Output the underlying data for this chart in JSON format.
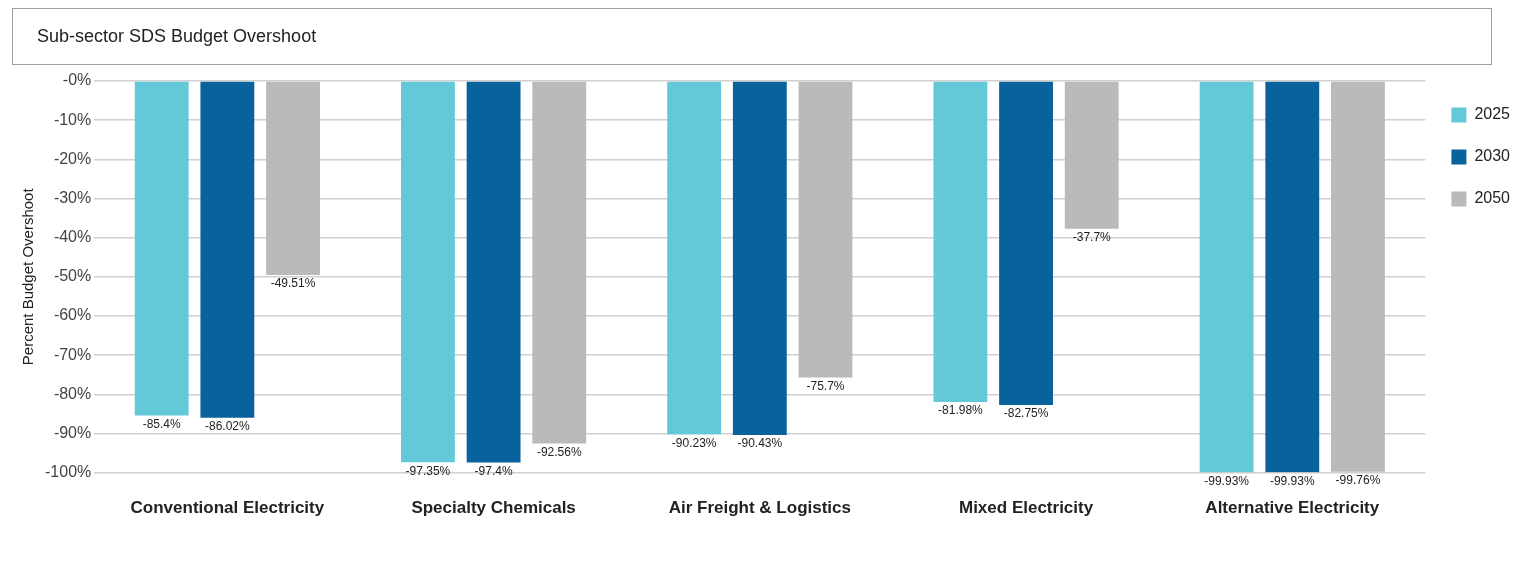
{
  "chart_data": {
    "type": "bar",
    "title": "Sub-sector SDS Budget Overshoot",
    "ylabel": "Percent Budget Overshoot",
    "categories": [
      "Conventional Electricity",
      "Specialty Chemicals",
      "Air Freight & Logistics",
      "Mixed Electricity",
      "Alternative Electricity"
    ],
    "series": [
      {
        "name": "2025",
        "color": "#63c8d8",
        "values": [
          -85.4,
          -97.35,
          -90.23,
          -81.98,
          -99.93
        ],
        "value_labels": [
          "-85.4%",
          "-97.35%",
          "-90.23%",
          "-81.98%",
          "-99.93%"
        ]
      },
      {
        "name": "2030",
        "color": "#08639c",
        "values": [
          -86.02,
          -97.4,
          -90.43,
          -82.75,
          -99.93
        ],
        "value_labels": [
          "-86.02%",
          "-97.4%",
          "-90.43%",
          "-82.75%",
          "-99.93%"
        ]
      },
      {
        "name": "2050",
        "color": "#bababa",
        "values": [
          -49.51,
          -92.56,
          -75.7,
          -37.7,
          -99.76
        ],
        "value_labels": [
          "-49.51%",
          "-92.56%",
          "-75.7%",
          "-37.7%",
          "-99.76%"
        ]
      }
    ],
    "ylim": [
      -100,
      0
    ],
    "yticks": [
      {
        "value": 0,
        "label": "-0%"
      },
      {
        "value": -10,
        "label": "-10%"
      },
      {
        "value": -20,
        "label": "-20%"
      },
      {
        "value": -30,
        "label": "-30%"
      },
      {
        "value": -40,
        "label": "-40%"
      },
      {
        "value": -50,
        "label": "-50%"
      },
      {
        "value": -60,
        "label": "-60%"
      },
      {
        "value": -70,
        "label": "-70%"
      },
      {
        "value": -80,
        "label": "-80%"
      },
      {
        "value": -90,
        "label": "-90%"
      },
      {
        "value": -100,
        "label": "-100%"
      }
    ],
    "grid": "y",
    "legend": "right"
  }
}
